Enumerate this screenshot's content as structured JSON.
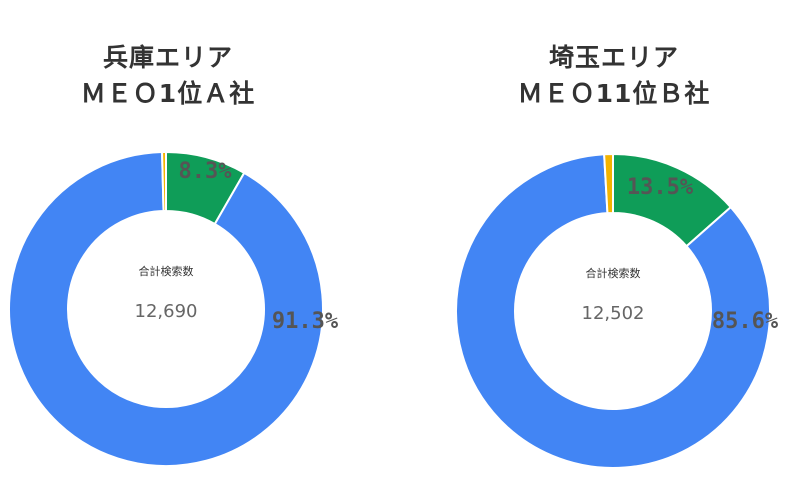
{
  "chart_data": [
    {
      "type": "donut",
      "title": [
        "兵庫エリア",
        "ＭＥＯ1位Ａ社"
      ],
      "center_label": "合計検索数",
      "center_value": "12,690",
      "slices": [
        {
          "value": 8.3,
          "label": "8.3%",
          "color": "#0f9d58"
        },
        {
          "value": 91.3,
          "label": "91.3%",
          "color": "#4285f4"
        },
        {
          "value": 0.4,
          "label": "",
          "color": "#f4b400"
        }
      ]
    },
    {
      "type": "donut",
      "title": [
        "埼玉エリア",
        "ＭＥＯ11位Ｂ社"
      ],
      "center_label": "合計検索数",
      "center_value": "12,502",
      "slices": [
        {
          "value": 13.5,
          "label": "13.5%",
          "color": "#0f9d58"
        },
        {
          "value": 85.6,
          "label": "85.6%",
          "color": "#4285f4"
        },
        {
          "value": 0.9,
          "label": "",
          "color": "#f4b400"
        }
      ]
    }
  ]
}
